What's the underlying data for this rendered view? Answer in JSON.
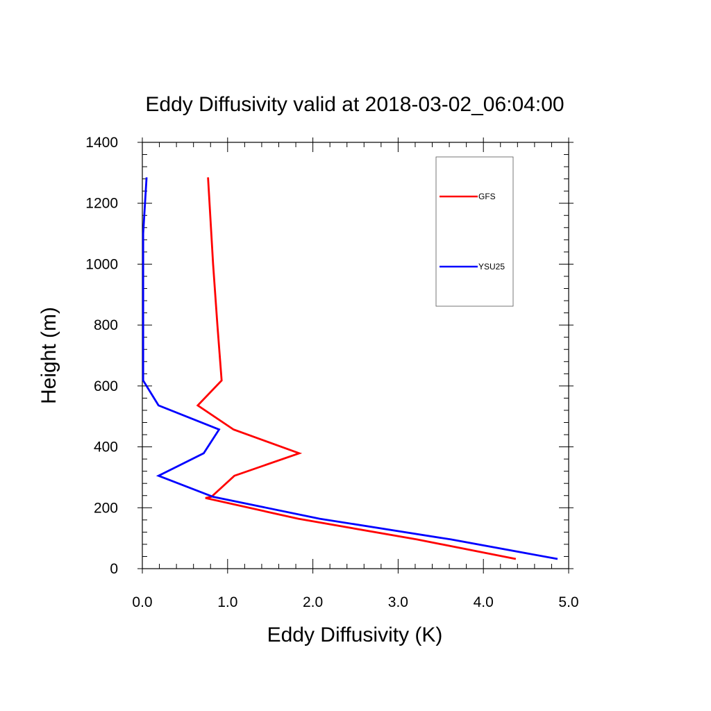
{
  "chart_data": {
    "type": "line",
    "title": "Eddy Diffusivity valid at 2018-03-02_06:04:00",
    "xlabel": "Eddy Diffusivity (K)",
    "ylabel": "Height (m)",
    "xlim": [
      0,
      5
    ],
    "ylim": [
      0,
      1400
    ],
    "xticks": [
      "0.0",
      "1.0",
      "2.0",
      "3.0",
      "4.0",
      "5.0"
    ],
    "yticks": [
      "0",
      "200",
      "400",
      "600",
      "800",
      "1000",
      "1200",
      "1400"
    ],
    "grid": false,
    "legend_position": "top-right",
    "series": [
      {
        "name": "GFS",
        "color": "#ff0000",
        "points": [
          {
            "x": 4.38,
            "y": 32
          },
          {
            "x": 3.22,
            "y": 96
          },
          {
            "x": 1.83,
            "y": 164
          },
          {
            "x": 0.74,
            "y": 232
          },
          {
            "x": 0.81,
            "y": 236
          },
          {
            "x": 1.08,
            "y": 305
          },
          {
            "x": 1.84,
            "y": 379
          },
          {
            "x": 1.07,
            "y": 457
          },
          {
            "x": 0.65,
            "y": 536
          },
          {
            "x": 0.93,
            "y": 618
          },
          {
            "x": 0.88,
            "y": 800
          },
          {
            "x": 0.83,
            "y": 1000
          },
          {
            "x": 0.77,
            "y": 1285
          }
        ]
      },
      {
        "name": "YSU25",
        "color": "#0000ff",
        "points": [
          {
            "x": 4.87,
            "y": 32
          },
          {
            "x": 3.62,
            "y": 96
          },
          {
            "x": 2.08,
            "y": 164
          },
          {
            "x": 0.83,
            "y": 236
          },
          {
            "x": 0.19,
            "y": 305
          },
          {
            "x": 0.72,
            "y": 379
          },
          {
            "x": 0.9,
            "y": 457
          },
          {
            "x": 0.19,
            "y": 536
          },
          {
            "x": 0.01,
            "y": 618
          },
          {
            "x": 0.01,
            "y": 800
          },
          {
            "x": 0.01,
            "y": 1000
          },
          {
            "x": 0.01,
            "y": 1100
          },
          {
            "x": 0.05,
            "y": 1285
          }
        ]
      }
    ]
  }
}
